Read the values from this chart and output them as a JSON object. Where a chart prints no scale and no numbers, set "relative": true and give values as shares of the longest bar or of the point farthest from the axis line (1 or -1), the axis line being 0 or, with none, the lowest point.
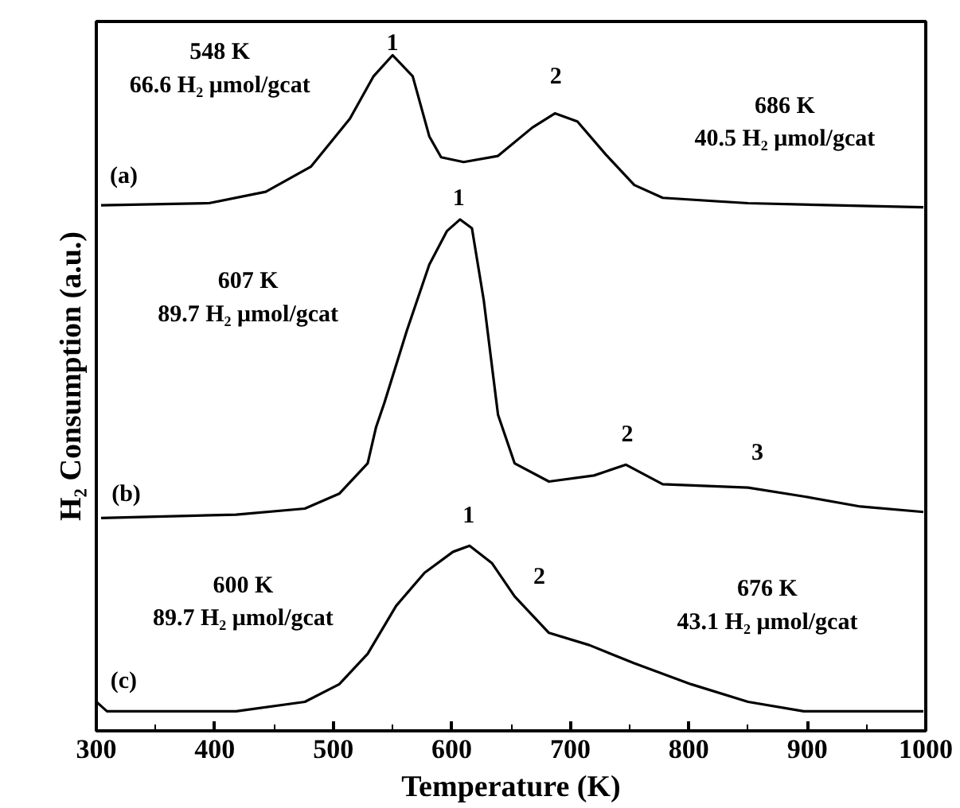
{
  "chart_data": {
    "type": "line",
    "relative": true,
    "xlabel": "Temperature (K)",
    "ylabel": "H₂ Consumption (a.u.)",
    "xlim": [
      300,
      1000
    ],
    "xticks": [
      300,
      400,
      500,
      600,
      700,
      800,
      900,
      1000
    ],
    "grid": false,
    "tick_labels": "x",
    "line_style": "solid",
    "marker": "none",
    "series": [
      {
        "color": "#000000",
        "x": [
          304,
          395,
          443,
          481,
          514,
          534,
          550,
          567,
          581,
          591,
          610,
          639,
          668,
          687,
          706,
          730,
          754,
          778,
          850,
          998
        ],
        "values": [
          0.778,
          0.781,
          0.798,
          0.835,
          0.906,
          0.969,
          1.0,
          0.969,
          0.88,
          0.849,
          0.842,
          0.851,
          0.893,
          0.914,
          0.902,
          0.853,
          0.808,
          0.789,
          0.781,
          0.775
        ]
      },
      {
        "color": "#000000",
        "x": [
          304,
          418,
          476,
          505,
          529,
          536,
          543,
          562,
          581,
          596,
          607,
          617,
          627,
          639,
          653,
          682,
          720,
          747,
          778,
          850,
          897,
          945,
          998
        ],
        "values": [
          0.315,
          0.32,
          0.329,
          0.351,
          0.396,
          0.449,
          0.485,
          0.592,
          0.69,
          0.74,
          0.757,
          0.744,
          0.637,
          0.468,
          0.396,
          0.369,
          0.378,
          0.394,
          0.365,
          0.36,
          0.347,
          0.332,
          0.324
        ]
      },
      {
        "color": "#000000",
        "x": [
          300,
          309,
          418,
          476,
          505,
          529,
          553,
          577,
          601,
          615,
          634,
          653,
          682,
          716,
          754,
          802,
          850,
          897,
          998
        ],
        "values": [
          0.043,
          0.029,
          0.029,
          0.043,
          0.069,
          0.114,
          0.185,
          0.234,
          0.265,
          0.274,
          0.248,
          0.199,
          0.145,
          0.127,
          0.1,
          0.069,
          0.043,
          0.029,
          0.029
        ]
      }
    ],
    "annotations": [
      "548 K\n66.6 H₂ μmol/gcat",
      "1",
      "2",
      "686 K\n40.5 H₂ μmol/gcat",
      "(a)",
      "607 K\n89.7 H₂ μmol/gcat",
      "1",
      "2",
      "3",
      "(b)",
      "600 K\n89.7 H₂ μmol/gcat",
      "1",
      "2",
      "676 K\n43.1 H₂ μmol/gcat",
      "(c)"
    ]
  }
}
